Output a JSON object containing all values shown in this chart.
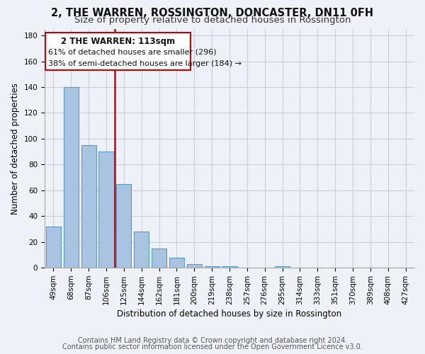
{
  "title": "2, THE WARREN, ROSSINGTON, DONCASTER, DN11 0FH",
  "subtitle": "Size of property relative to detached houses in Rossington",
  "xlabel": "Distribution of detached houses by size in Rossington",
  "ylabel": "Number of detached properties",
  "categories": [
    "49sqm",
    "68sqm",
    "87sqm",
    "106sqm",
    "125sqm",
    "144sqm",
    "162sqm",
    "181sqm",
    "200sqm",
    "219sqm",
    "238sqm",
    "257sqm",
    "276sqm",
    "295sqm",
    "314sqm",
    "333sqm",
    "351sqm",
    "370sqm",
    "389sqm",
    "408sqm",
    "427sqm"
  ],
  "values": [
    32,
    140,
    95,
    90,
    65,
    28,
    15,
    8,
    3,
    1,
    1,
    0,
    0,
    1,
    0,
    0,
    0,
    0,
    0,
    0,
    0
  ],
  "bar_color": "#a8c4e0",
  "bar_edge_color": "#5a9bc7",
  "red_line_x": 3.5,
  "red_line_label": "2 THE WARREN: 113sqm",
  "annotation_line1": "61% of detached houses are smaller (296)",
  "annotation_line2": "38% of semi-detached houses are larger (184) →",
  "annotation_box_color": "#ffffff",
  "annotation_box_edge": "#cc0000",
  "ylim": [
    0,
    185
  ],
  "yticks": [
    0,
    20,
    40,
    60,
    80,
    100,
    120,
    140,
    160,
    180
  ],
  "background_color": "#eef2f8",
  "grid_color": "#c8d0dc",
  "footer_line1": "Contains HM Land Registry data © Crown copyright and database right 2024.",
  "footer_line2": "Contains public sector information licensed under the Open Government Licence v3.0.",
  "title_fontsize": 10.5,
  "subtitle_fontsize": 9.5,
  "label_fontsize": 8.5,
  "tick_fontsize": 7.5,
  "footer_fontsize": 7.0,
  "annot_label_fontsize": 8.5,
  "annot_text_fontsize": 8.0
}
